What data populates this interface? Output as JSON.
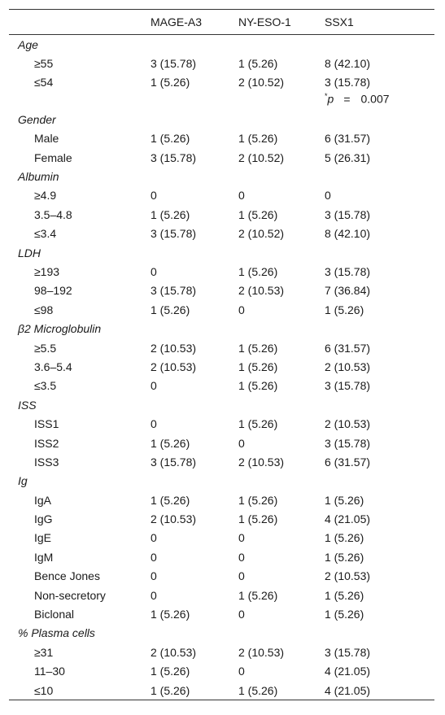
{
  "header": {
    "col0": "",
    "col1": "MAGE-A3",
    "col2": "NY-ESO-1",
    "col3": "SSX1"
  },
  "pvalue": {
    "star": "*",
    "p": "p",
    "eq": "=",
    "value": "0.007"
  },
  "groups": [
    {
      "label": "Age",
      "rows": [
        [
          "≥55",
          "3 (15.78)",
          "1 (5.26)",
          "8 (42.10)"
        ],
        [
          "≤54",
          "1 (5.26)",
          "2 (10.52)",
          "3 (15.78)"
        ]
      ]
    },
    {
      "label": "Gender",
      "rows": [
        [
          "Male",
          "1 (5.26)",
          "1 (5.26)",
          "6 (31.57)"
        ],
        [
          "Female",
          "3 (15.78)",
          "2 (10.52)",
          "5 (26.31)"
        ]
      ]
    },
    {
      "label": "Albumin",
      "rows": [
        [
          "≥4.9",
          "0",
          "0",
          "0"
        ],
        [
          "3.5–4.8",
          "1 (5.26)",
          "1 (5.26)",
          "3 (15.78)"
        ],
        [
          "≤3.4",
          "3 (15.78)",
          "2 (10.52)",
          "8 (42.10)"
        ]
      ]
    },
    {
      "label": "LDH",
      "rows": [
        [
          "≥193",
          "0",
          "1 (5.26)",
          "3 (15.78)"
        ],
        [
          "98–192",
          "3 (15.78)",
          "2 (10.53)",
          "7 (36.84)"
        ],
        [
          "≤98",
          "1 (5.26)",
          "0",
          "1 (5.26)"
        ]
      ]
    },
    {
      "label": "β2 Microglobulin",
      "rows": [
        [
          "≥5.5",
          "2 (10.53)",
          "1 (5.26)",
          "6 (31.57)"
        ],
        [
          "3.6–5.4",
          "2 (10.53)",
          "1 (5.26)",
          "2 (10.53)"
        ],
        [
          "≤3.5",
          "0",
          "1 (5.26)",
          "3 (15.78)"
        ]
      ]
    },
    {
      "label": "ISS",
      "rows": [
        [
          "ISS1",
          "0",
          "1 (5.26)",
          "2 (10.53)"
        ],
        [
          "ISS2",
          "1 (5.26)",
          "0",
          "3 (15.78)"
        ],
        [
          "ISS3",
          "3 (15.78)",
          "2 (10.53)",
          "6 (31.57)"
        ]
      ]
    },
    {
      "label": "Ig",
      "rows": [
        [
          "IgA",
          "1 (5.26)",
          "1 (5.26)",
          "1 (5.26)"
        ],
        [
          "IgG",
          "2 (10.53)",
          "1 (5.26)",
          "4 (21.05)"
        ],
        [
          "IgE",
          "0",
          "0",
          "1 (5.26)"
        ],
        [
          "IgM",
          "0",
          "0",
          "1 (5.26)"
        ],
        [
          "Bence Jones",
          "0",
          "0",
          "2 (10.53)"
        ],
        [
          "Non-secretory",
          "0",
          "1 (5.26)",
          "1 (5.26)"
        ],
        [
          "Biclonal",
          "1 (5.26)",
          "0",
          "1 (5.26)"
        ]
      ]
    },
    {
      "label": "% Plasma cells",
      "rows": [
        [
          "≥31",
          "2 (10.53)",
          "2 (10.53)",
          "3 (15.78)"
        ],
        [
          "11–30",
          "1 (5.26)",
          "0",
          "4 (21.05)"
        ],
        [
          "≤10",
          "1 (5.26)",
          "1 (5.26)",
          "4 (21.05)"
        ]
      ]
    }
  ]
}
